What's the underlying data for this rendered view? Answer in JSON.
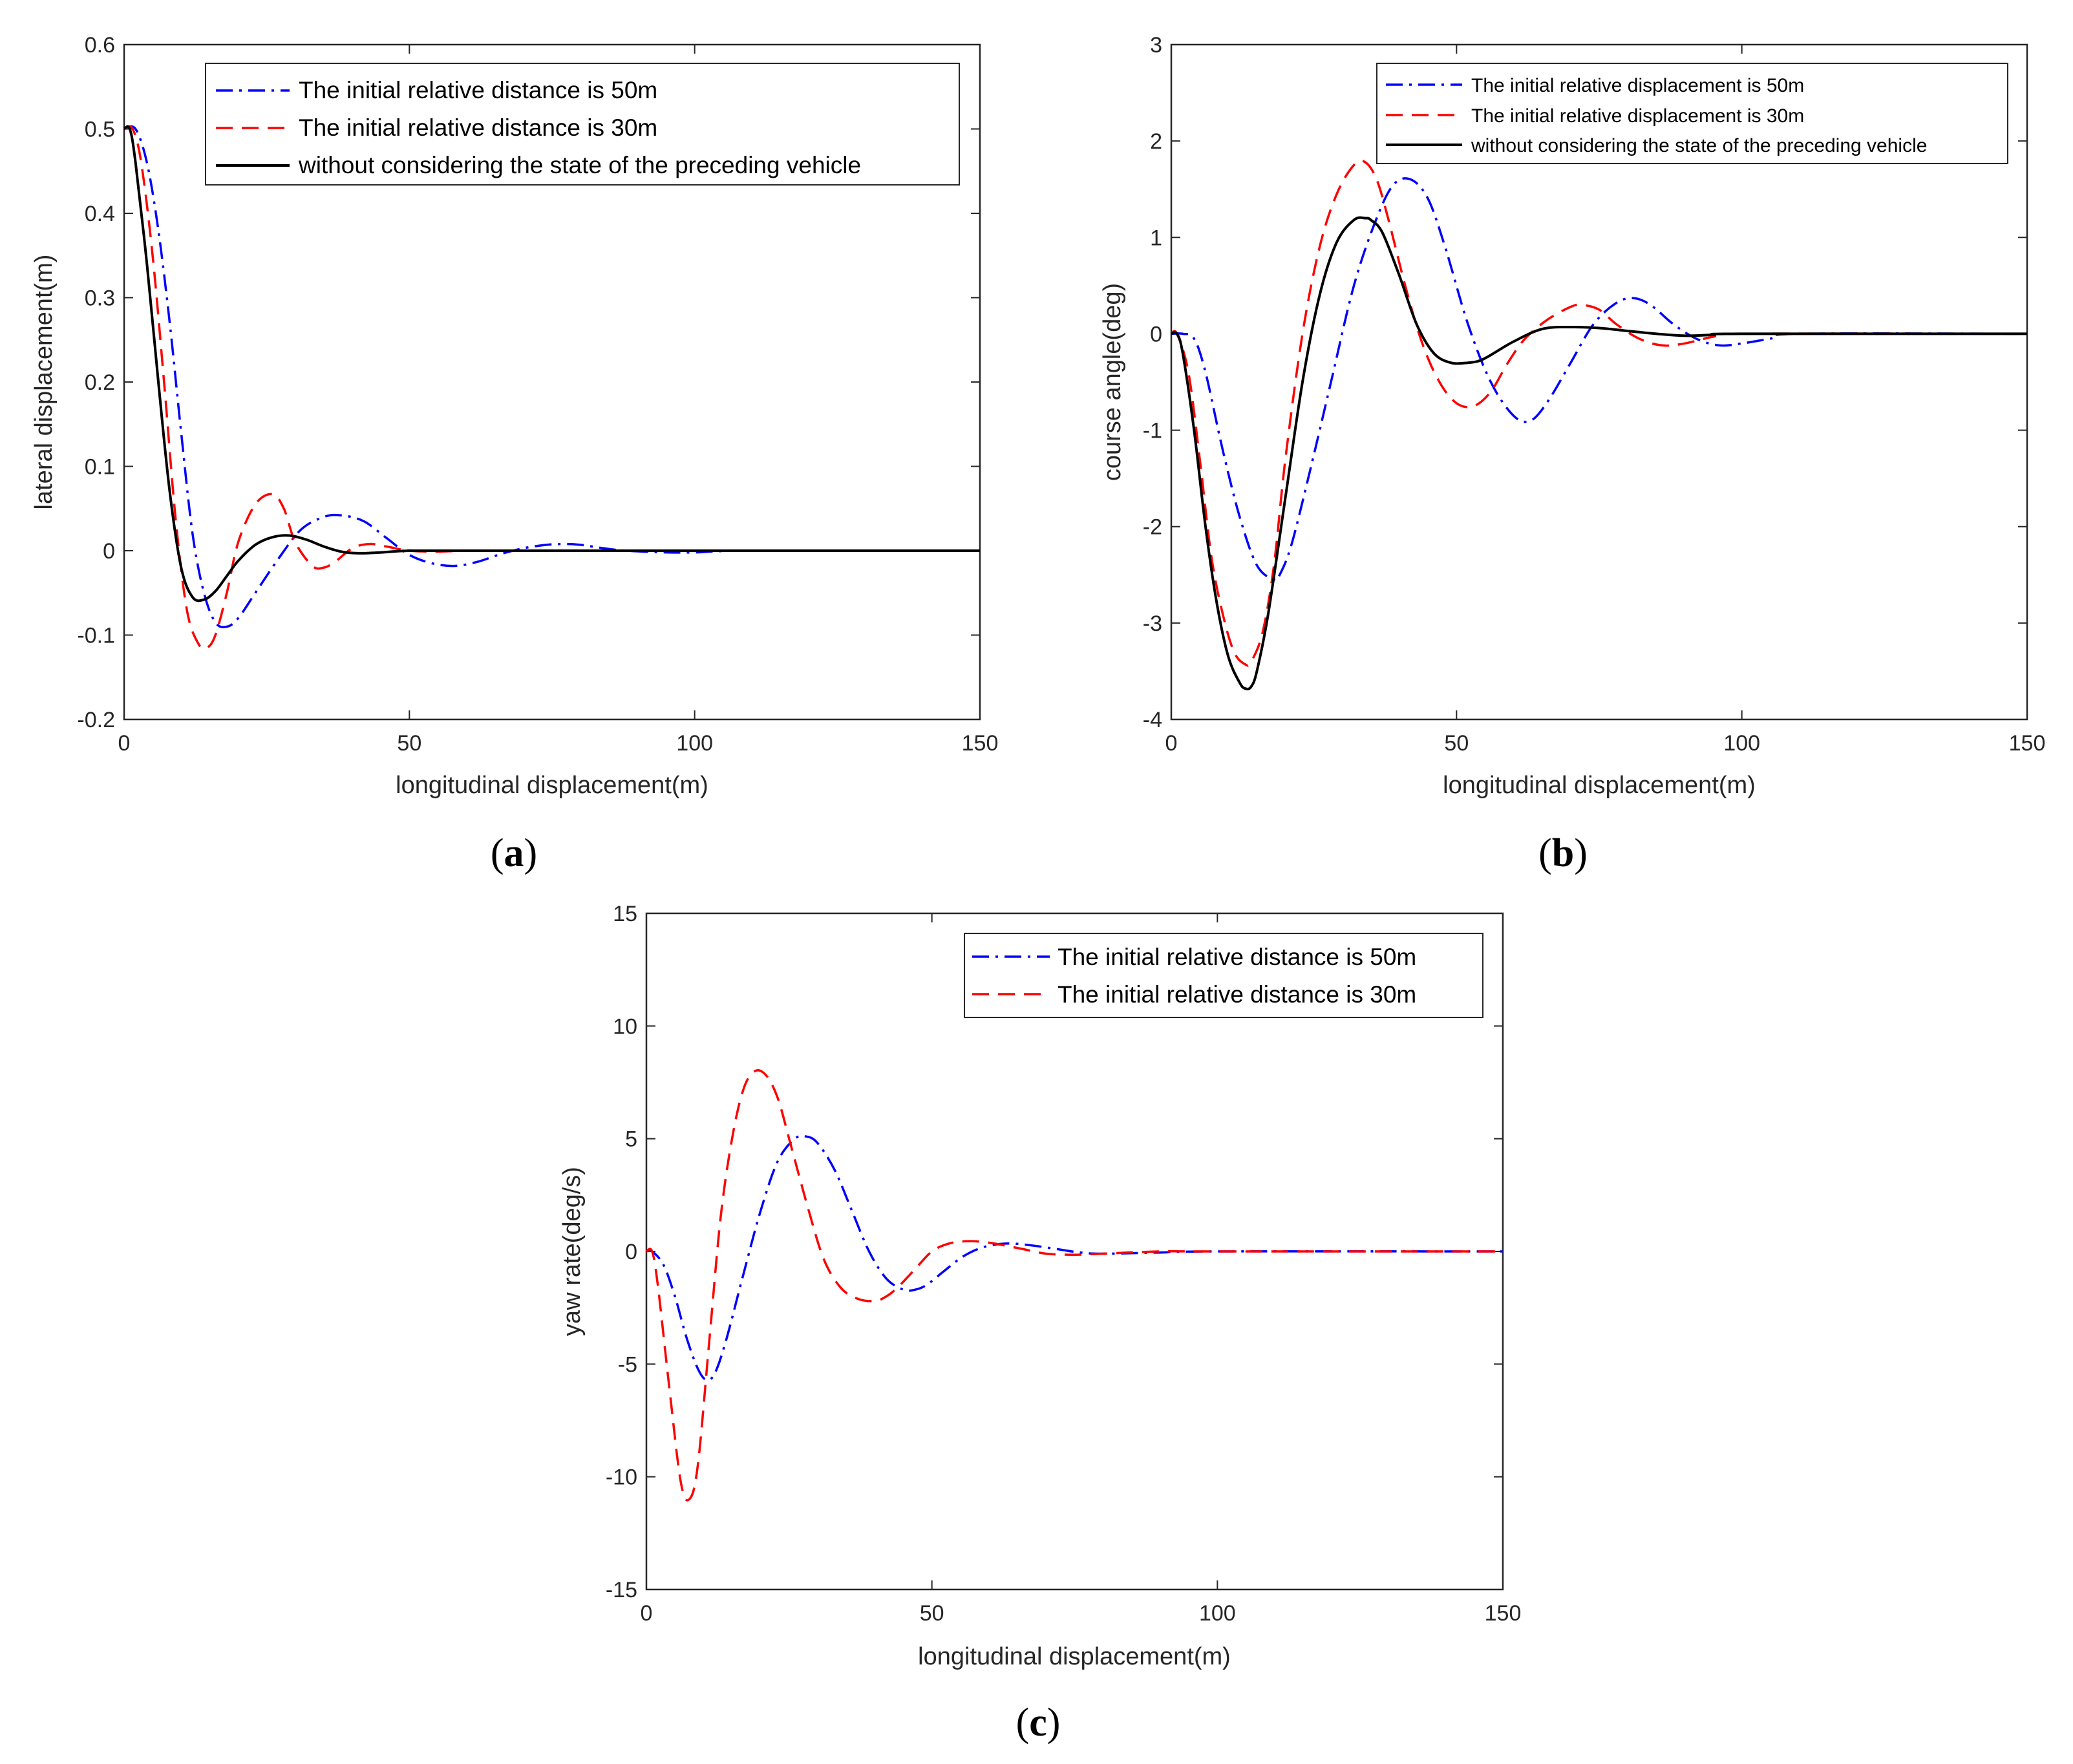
{
  "chart_data": [
    {
      "id": "a",
      "type": "line",
      "caption_letter": "a",
      "xlabel": "longitudinal displacement(m)",
      "ylabel": "lateral displacement(m)",
      "xlim": [
        0,
        150
      ],
      "ylim": [
        -0.2,
        0.6
      ],
      "xticks": [
        0,
        50,
        100,
        150
      ],
      "xtick_labels": [
        "0",
        "50",
        "100",
        "150"
      ],
      "yticks": [
        -0.2,
        -0.1,
        0,
        0.1,
        0.2,
        0.3,
        0.4,
        0.5,
        0.6
      ],
      "ytick_labels": [
        "-0.2",
        "-0.1",
        "0",
        "0.1",
        "0.2",
        "0.3",
        "0.4",
        "0.5",
        "0.6"
      ],
      "legend_position": "top-right",
      "series": [
        {
          "name": "The initial relative distance is 50m",
          "color": "#0000ff",
          "style": "dashdot",
          "x": [
            0,
            2,
            4,
            6,
            8,
            10,
            12,
            14,
            16,
            18,
            20,
            23,
            27,
            31,
            35,
            38,
            42,
            46,
            50,
            54,
            58,
            62,
            66,
            70,
            74,
            77,
            80,
            84,
            88,
            95,
            100,
            110,
            150
          ],
          "y": [
            0.5,
            0.5,
            0.46,
            0.38,
            0.27,
            0.14,
            0.02,
            -0.05,
            -0.085,
            -0.09,
            -0.08,
            -0.05,
            -0.01,
            0.025,
            0.04,
            0.042,
            0.035,
            0.015,
            -0.005,
            -0.015,
            -0.018,
            -0.013,
            -0.004,
            0.003,
            0.007,
            0.008,
            0.007,
            0.003,
            0.0,
            -0.002,
            -0.002,
            0.0,
            0.0
          ]
        },
        {
          "name": "The initial relative distance is 30m",
          "color": "#ff0000",
          "style": "dashed",
          "x": [
            0,
            1.5,
            3,
            5,
            7,
            9,
            11,
            13,
            14.5,
            16,
            18,
            20,
            23,
            26,
            28,
            30,
            33,
            35,
            37,
            40,
            43,
            46,
            50,
            55,
            60,
            70,
            150
          ],
          "y": [
            0.5,
            0.5,
            0.46,
            0.35,
            0.2,
            0.04,
            -0.07,
            -0.11,
            -0.115,
            -0.1,
            -0.05,
            0.01,
            0.055,
            0.067,
            0.05,
            0.01,
            -0.018,
            -0.02,
            -0.013,
            0.003,
            0.008,
            0.005,
            0.0,
            -0.001,
            0.0,
            0.0,
            0.0
          ]
        },
        {
          "name": "without considering the state of the preceding vehicle",
          "color": "#000000",
          "style": "solid",
          "x": [
            0,
            1,
            2,
            4,
            6,
            8,
            10,
            12,
            14,
            16,
            18,
            20,
            23,
            26,
            29,
            32,
            35,
            38,
            41,
            45,
            50,
            60,
            150
          ],
          "y": [
            0.5,
            0.5,
            0.46,
            0.34,
            0.2,
            0.07,
            -0.02,
            -0.055,
            -0.058,
            -0.048,
            -0.03,
            -0.012,
            0.007,
            0.016,
            0.018,
            0.013,
            0.005,
            -0.001,
            -0.003,
            -0.002,
            0.0,
            0.0,
            0.0
          ]
        }
      ]
    },
    {
      "id": "b",
      "type": "line",
      "caption_letter": "b",
      "xlabel": "longitudinal displacement(m)",
      "ylabel": "course angle(deg)",
      "xlim": [
        0,
        150
      ],
      "ylim": [
        -4,
        3
      ],
      "xticks": [
        0,
        50,
        100,
        150
      ],
      "xtick_labels": [
        "0",
        "50",
        "100",
        "150"
      ],
      "yticks": [
        -4,
        -3,
        -2,
        -1,
        0,
        1,
        2,
        3
      ],
      "ytick_labels": [
        "-4",
        "-3",
        "-2",
        "-1",
        "0",
        "1",
        "2",
        "3"
      ],
      "legend_position": "top-right",
      "series": [
        {
          "name": "The initial relative displacement is 50m",
          "color": "#0000ff",
          "style": "dashdot",
          "x": [
            0,
            2,
            4,
            6,
            9,
            12,
            15,
            18,
            19,
            21,
            24,
            28,
            32,
            36,
            39,
            42,
            45,
            48,
            52,
            56,
            60,
            63,
            66,
            70,
            74,
            78,
            81,
            84,
            88,
            92,
            96,
            100,
            105,
            110,
            150
          ],
          "y": [
            0,
            0,
            -0.05,
            -0.4,
            -1.2,
            -1.9,
            -2.4,
            -2.55,
            -2.5,
            -2.2,
            -1.5,
            -0.5,
            0.5,
            1.2,
            1.55,
            1.6,
            1.4,
            0.9,
            0.1,
            -0.5,
            -0.85,
            -0.9,
            -0.7,
            -0.3,
            0.1,
            0.32,
            0.37,
            0.3,
            0.1,
            -0.05,
            -0.12,
            -0.1,
            -0.05,
            0.0,
            0.0
          ]
        },
        {
          "name": "The initial relative displacement is 30m",
          "color": "#ff0000",
          "style": "dashed",
          "x": [
            0,
            1,
            3,
            5,
            7,
            9,
            11,
            13,
            14,
            16,
            18,
            20,
            23,
            26,
            29,
            32,
            34,
            36,
            38,
            41,
            44,
            47,
            50,
            53,
            56,
            59,
            62,
            66,
            70,
            72,
            75,
            78,
            82,
            86,
            90,
            95,
            100,
            150
          ],
          "y": [
            0,
            0,
            -0.4,
            -1.3,
            -2.3,
            -2.9,
            -3.3,
            -3.43,
            -3.4,
            -3.1,
            -2.4,
            -1.3,
            0.0,
            0.9,
            1.45,
            1.75,
            1.78,
            1.6,
            1.2,
            0.5,
            -0.1,
            -0.5,
            -0.72,
            -0.75,
            -0.6,
            -0.3,
            -0.05,
            0.15,
            0.28,
            0.3,
            0.25,
            0.1,
            -0.05,
            -0.12,
            -0.1,
            -0.03,
            0.0,
            0.0
          ]
        },
        {
          "name": "without considering the state of the preceding vehicle",
          "color": "#000000",
          "style": "solid",
          "x": [
            0,
            1,
            2,
            4,
            6,
            8,
            10,
            12,
            13,
            14,
            15,
            17,
            20,
            23,
            26,
            29,
            32,
            34,
            35,
            37,
            40,
            43,
            46,
            49,
            52,
            54,
            56,
            60,
            65,
            70,
            75,
            80,
            85,
            90,
            95,
            100,
            150
          ],
          "y": [
            0,
            0,
            -0.2,
            -1.0,
            -2.0,
            -2.8,
            -3.35,
            -3.62,
            -3.68,
            -3.66,
            -3.5,
            -2.9,
            -1.7,
            -0.5,
            0.4,
            0.95,
            1.18,
            1.2,
            1.18,
            1.05,
            0.6,
            0.1,
            -0.2,
            -0.3,
            -0.3,
            -0.28,
            -0.22,
            -0.08,
            0.05,
            0.07,
            0.06,
            0.03,
            0.0,
            -0.02,
            -0.01,
            0.0,
            0.0
          ]
        }
      ]
    },
    {
      "id": "c",
      "type": "line",
      "caption_letter": "c",
      "xlabel": "longitudinal displacement(m)",
      "ylabel": "yaw rate(deg/s)",
      "xlim": [
        0,
        150
      ],
      "ylim": [
        -15,
        15
      ],
      "xticks": [
        0,
        50,
        100,
        150
      ],
      "xtick_labels": [
        "0",
        "50",
        "100",
        "150"
      ],
      "yticks": [
        -15,
        -10,
        -5,
        0,
        5,
        10,
        15
      ],
      "ytick_labels": [
        "-15",
        "-10",
        "-5",
        "0",
        "5",
        "10",
        "15"
      ],
      "legend_position": "top-right",
      "series": [
        {
          "name": "The initial relative distance is 50m",
          "color": "#0000ff",
          "style": "dashdot",
          "x": [
            0,
            1,
            3,
            5,
            7,
            9,
            10.5,
            12,
            14,
            17,
            20,
            23,
            26,
            28,
            30,
            33,
            36,
            39,
            42,
            45,
            47,
            49,
            52,
            55,
            58,
            61,
            64,
            68,
            72,
            76,
            80,
            90,
            100,
            150
          ],
          "y": [
            0,
            0,
            -0.6,
            -2.0,
            -3.8,
            -5.2,
            -5.7,
            -5.4,
            -3.9,
            -1.0,
            1.8,
            4.0,
            5.0,
            5.1,
            4.8,
            3.6,
            1.8,
            0.0,
            -1.2,
            -1.7,
            -1.7,
            -1.5,
            -0.9,
            -0.3,
            0.1,
            0.3,
            0.35,
            0.25,
            0.1,
            -0.05,
            -0.1,
            -0.05,
            0.0,
            0.0
          ]
        },
        {
          "name": "The initial relative distance is 30m",
          "color": "#ff0000",
          "style": "dashed",
          "x": [
            0,
            1,
            2,
            4,
            6,
            7.5,
            9,
            11,
            13,
            15,
            17,
            19,
            21,
            23,
            25,
            28,
            31,
            34,
            37,
            40,
            42,
            44,
            47,
            50,
            53,
            56,
            59,
            62,
            66,
            70,
            75,
            80,
            90,
            100,
            150
          ],
          "y": [
            0,
            0,
            -1.5,
            -6.0,
            -10.2,
            -11.0,
            -9.5,
            -4.0,
            1.5,
            5.0,
            7.2,
            8.0,
            7.8,
            6.8,
            5.0,
            2.2,
            -0.3,
            -1.6,
            -2.1,
            -2.2,
            -2.0,
            -1.6,
            -0.8,
            0.0,
            0.35,
            0.45,
            0.42,
            0.3,
            0.1,
            -0.1,
            -0.15,
            -0.1,
            0.0,
            0.0,
            0.0
          ]
        }
      ]
    }
  ]
}
